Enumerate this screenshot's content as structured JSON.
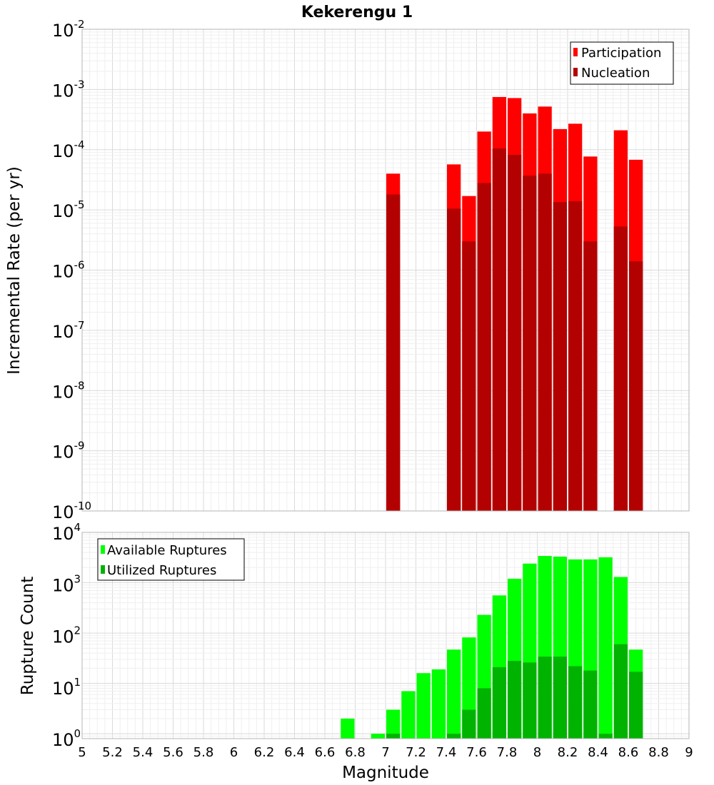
{
  "chart_data": [
    {
      "type": "bar",
      "title": "Kekerengu 1",
      "xlabel": "",
      "ylabel": "Incremental Rate (per yr)",
      "yscale": "log",
      "ylim": [
        1e-10,
        0.01
      ],
      "xlim": [
        5,
        9
      ],
      "grid": true,
      "legend_position": "top-right",
      "ytick_bases": [
        "10",
        "10",
        "10",
        "10",
        "10",
        "10",
        "10",
        "10",
        "10"
      ],
      "ytick_exponents": [
        "-10",
        "-9",
        "-8",
        "-7",
        "-6",
        "-5",
        "-4",
        "-3",
        "-2"
      ],
      "series": [
        {
          "name": "Participation",
          "color": "#ff0000",
          "x": [
            7.05,
            7.45,
            7.55,
            7.65,
            7.75,
            7.85,
            7.95,
            8.05,
            8.15,
            8.25,
            8.35,
            8.55,
            8.65
          ],
          "values": [
            4e-05,
            5.7e-05,
            1.7e-05,
            0.0002,
            0.00075,
            0.00072,
            0.0004,
            0.00052,
            0.00022,
            0.00027,
            7.7e-05,
            0.00021,
            6.8e-05
          ]
        },
        {
          "name": "Nucleation",
          "color": "#b30000",
          "x": [
            7.05,
            7.45,
            7.55,
            7.65,
            7.75,
            7.85,
            7.95,
            8.05,
            8.15,
            8.25,
            8.35,
            8.55,
            8.65
          ],
          "values": [
            1.8e-05,
            1.05e-05,
            3e-06,
            2.8e-05,
            0.000105,
            8.2e-05,
            3.7e-05,
            4e-05,
            1.35e-05,
            1.4e-05,
            3e-06,
            5.3e-06,
            1.4e-06
          ]
        }
      ]
    },
    {
      "type": "bar",
      "title": "",
      "xlabel": "Magnitude",
      "ylabel": "Rupture Count",
      "yscale": "log",
      "ylim": [
        0.8,
        10000
      ],
      "xlim": [
        5,
        9
      ],
      "grid": true,
      "legend_position": "top-left",
      "xticks": [
        "5",
        "5.2",
        "5.4",
        "5.6",
        "5.8",
        "6",
        "6.2",
        "6.4",
        "6.6",
        "6.8",
        "7",
        "7.2",
        "7.4",
        "7.6",
        "7.8",
        "8",
        "8.2",
        "8.4",
        "8.6",
        "8.8",
        "9"
      ],
      "ytick_bases": [
        "10",
        "10",
        "10",
        "10",
        "10"
      ],
      "ytick_exponents": [
        "0",
        "1",
        "2",
        "3",
        "4"
      ],
      "series": [
        {
          "name": "Available Ruptures",
          "color": "#00ff00",
          "x": [
            6.75,
            6.95,
            7.05,
            7.15,
            7.25,
            7.35,
            7.45,
            7.55,
            7.65,
            7.75,
            7.85,
            7.95,
            8.05,
            8.15,
            8.25,
            8.35,
            8.45,
            8.55,
            8.65
          ],
          "values": [
            2,
            1,
            3,
            7,
            16,
            19,
            47,
            82,
            230,
            560,
            1200,
            2400,
            3400,
            3300,
            2900,
            2900,
            3200,
            1300,
            47
          ]
        },
        {
          "name": "Utilized Ruptures",
          "color": "#00b300",
          "x": [
            7.05,
            7.45,
            7.55,
            7.65,
            7.75,
            7.85,
            7.95,
            8.05,
            8.15,
            8.25,
            8.35,
            8.45,
            8.55,
            8.65
          ],
          "values": [
            1,
            1,
            3,
            8,
            21,
            28,
            26,
            34,
            34,
            22,
            18,
            1,
            60,
            17
          ]
        }
      ]
    }
  ]
}
